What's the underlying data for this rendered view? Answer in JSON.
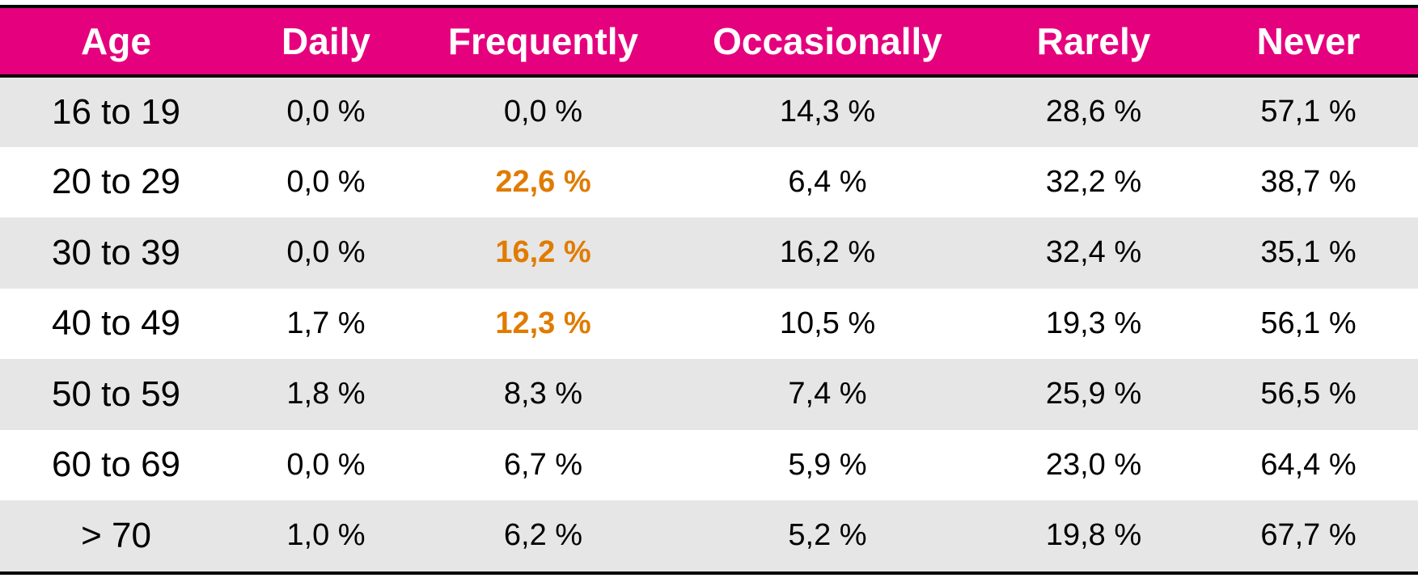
{
  "chart_data": {
    "type": "table",
    "columns": [
      "Age",
      "Daily",
      "Frequently",
      "Occasionally",
      "Rarely",
      "Never"
    ],
    "rows": [
      {
        "age": "16 to 19",
        "daily": "0,0 %",
        "frequently": "0,0 %",
        "occasionally": "14,3 %",
        "rarely": "28,6 %",
        "never": "57,1 %"
      },
      {
        "age": "20 to 29",
        "daily": "0,0 %",
        "frequently": "22,6 %",
        "occasionally": "6,4 %",
        "rarely": "32,2 %",
        "never": "38,7 %"
      },
      {
        "age": "30 to 39",
        "daily": "0,0 %",
        "frequently": "16,2 %",
        "occasionally": "16,2 %",
        "rarely": "32,4 %",
        "never": "35,1 %"
      },
      {
        "age": "40 to 49",
        "daily": "1,7 %",
        "frequently": "12,3 %",
        "occasionally": "10,5 %",
        "rarely": "19,3 %",
        "never": "56,1 %"
      },
      {
        "age": "50 to 59",
        "daily": "1,8 %",
        "frequently": "8,3 %",
        "occasionally": "7,4 %",
        "rarely": "25,9 %",
        "never": "56,5 %"
      },
      {
        "age": "60 to 69",
        "daily": "0,0 %",
        "frequently": "6,7 %",
        "occasionally": "5,9 %",
        "rarely": "23,0 %",
        "never": "64,4 %"
      },
      {
        "age": "> 70",
        "daily": "1,0 %",
        "frequently": "6,2 %",
        "occasionally": "5,2 %",
        "rarely": "19,8 %",
        "never": "67,7 %"
      }
    ],
    "highlighted": {
      "column": "frequently",
      "rows": [
        "20 to 29",
        "30 to 39",
        "40 to 49"
      ]
    }
  },
  "colors": {
    "header_bg": "#e5007d",
    "header_text": "#ffffff",
    "stripe": "#e6e6e6",
    "highlight": "#e07b00"
  }
}
